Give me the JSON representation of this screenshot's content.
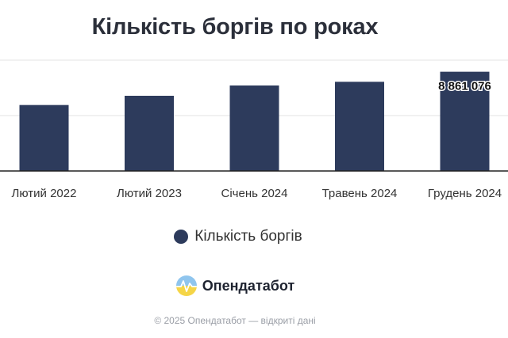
{
  "title": "Кількість боргів по роках",
  "chart_data": {
    "type": "bar",
    "categories": [
      "Лютий 2022",
      "Лютий 2023",
      "Січень 2024",
      "Травень 2024",
      "Грудень 2024"
    ],
    "series": [
      {
        "name": "Кількість боргів",
        "values": [
          7600000,
          7950000,
          8340000,
          8480000,
          8861076
        ],
        "data_labels": [
          "",
          "",
          "",
          "",
          "8 861 076"
        ],
        "color": "#2d3b5c"
      }
    ],
    "ylim": [
      5100000,
      9300000
    ],
    "grid": true,
    "legend_position": "bottom"
  },
  "brand": {
    "name": "Опендатабот"
  },
  "copyright": "© 2025 Опендатабот — відкриті дані",
  "colors": {
    "bar": "#2d3b5c",
    "grid": "#e3e3e3",
    "axis": "#222222",
    "logo_top": "#8fc5ee",
    "logo_bottom": "#f5d547"
  }
}
